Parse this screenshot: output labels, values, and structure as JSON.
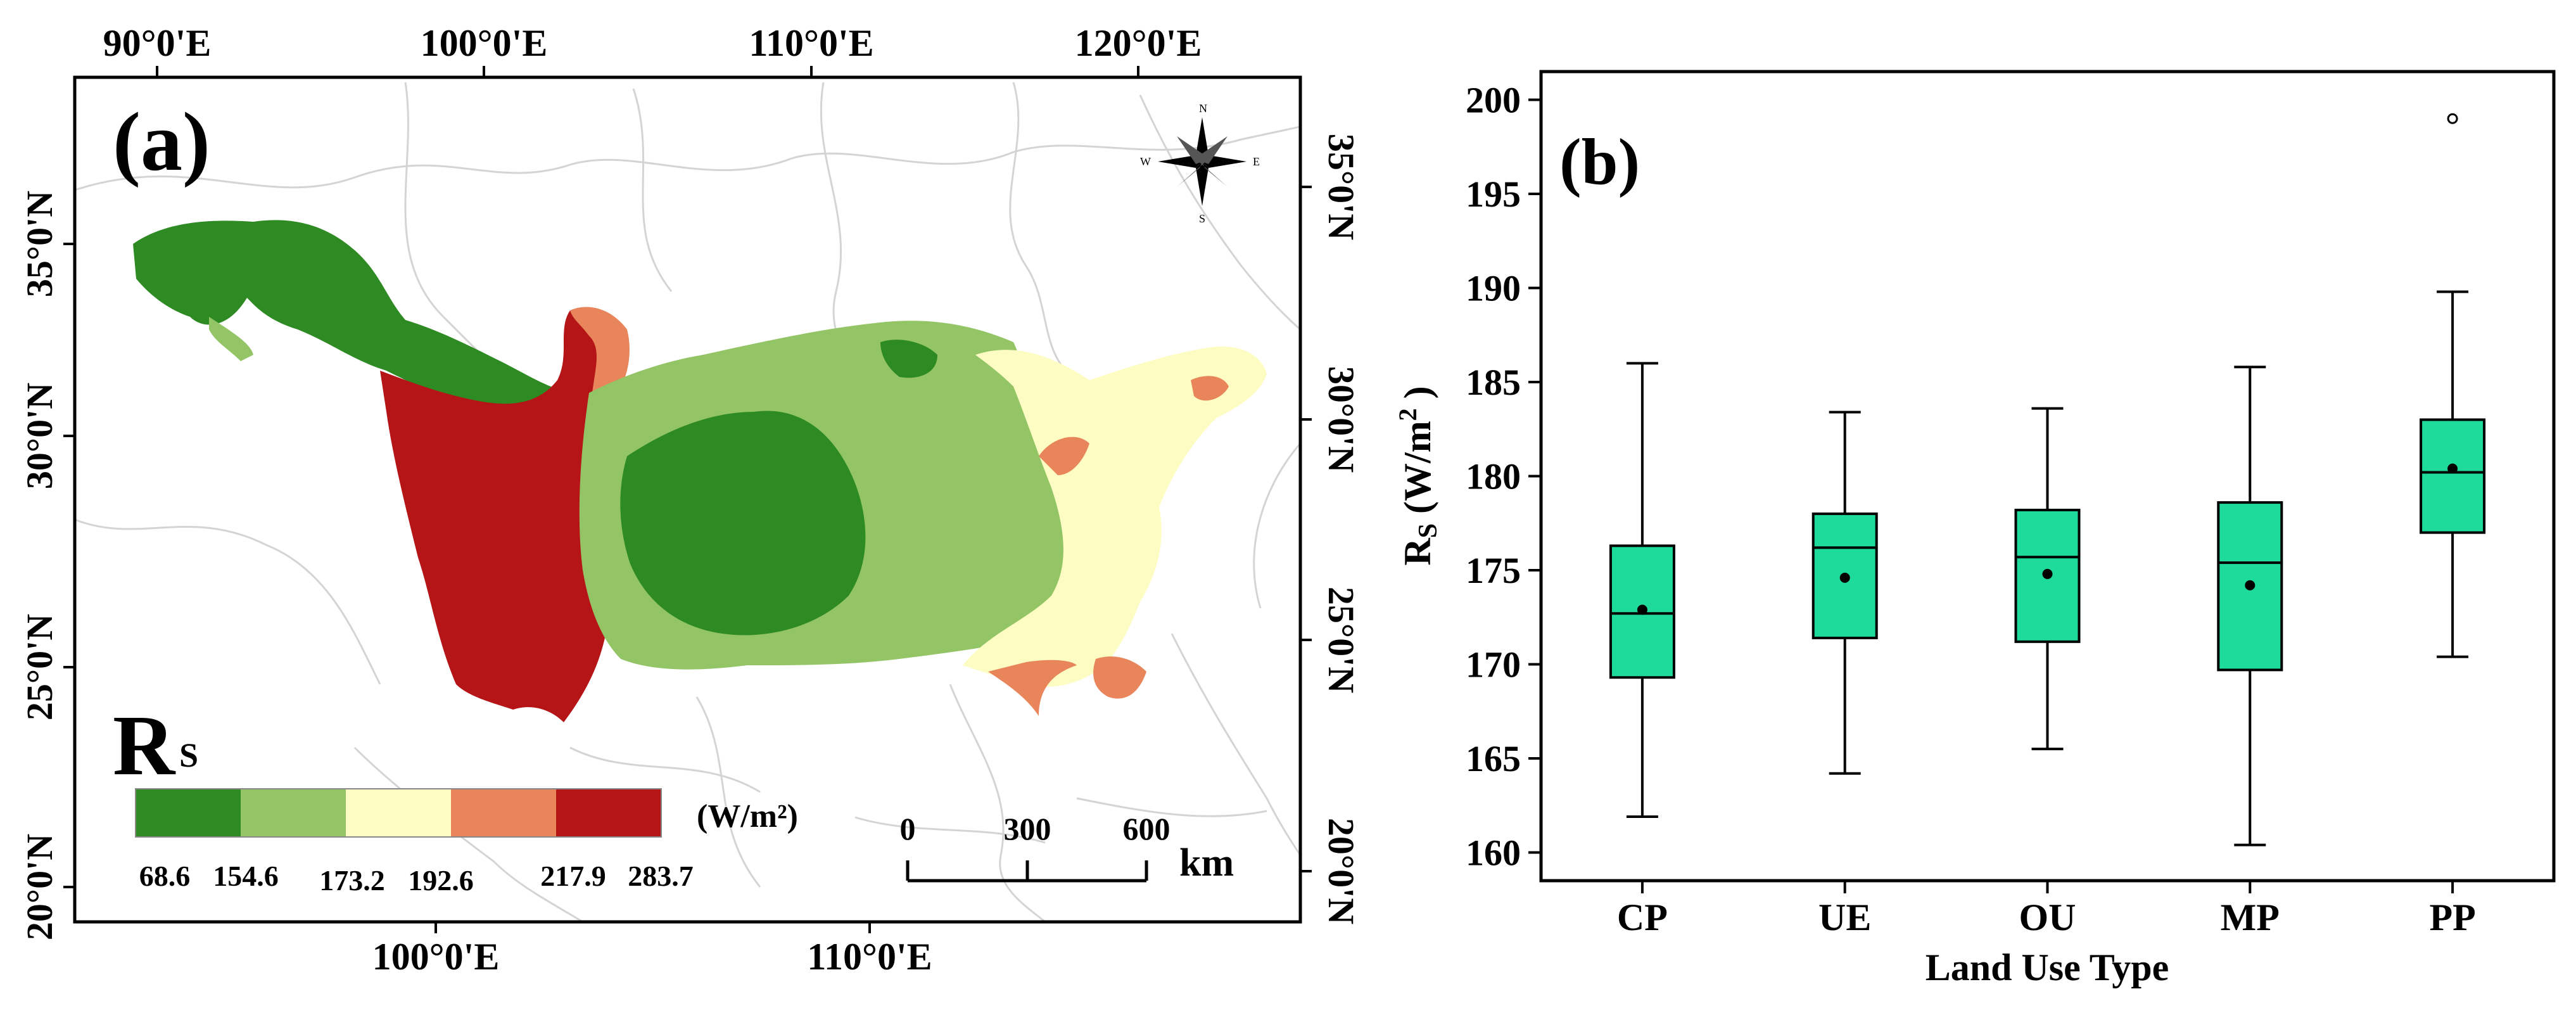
{
  "chart_data": [
    {
      "type": "map",
      "panel_label": "(a)",
      "variable": "Rs",
      "variable_main": "R",
      "variable_sub": "S",
      "unit": "(W/m²)",
      "top_lon_ticks": [
        "90°0'E",
        "100°0'E",
        "110°0'E",
        "120°0'E"
      ],
      "bottom_lon_ticks": [
        "100°0'E",
        "110°0'E"
      ],
      "left_lat_ticks": [
        "35°0'N",
        "30°0'N",
        "25°0'N",
        "20°0'N"
      ],
      "right_lat_ticks": [
        "35°0'N",
        "30°0'N",
        "25°0'N",
        "20°0'N"
      ],
      "legend": {
        "breaks": [
          "68.6",
          "154.6",
          "173.2",
          "192.6",
          "217.9",
          "283.7"
        ],
        "colors": [
          "#2e8b23",
          "#93c566",
          "#fdfcc2",
          "#e8855a",
          "#b51517"
        ]
      },
      "scale_bar": {
        "ticks": [
          "0",
          "300",
          "600"
        ],
        "unit": "km"
      },
      "compass": {
        "n": "N",
        "s": "S",
        "e": "E",
        "w": "W"
      }
    },
    {
      "type": "box",
      "panel_label": "(b)",
      "xlabel": "Land Use Type",
      "ylabel_main": "R",
      "ylabel_sub": "S",
      "ylabel_unit": " (W/m",
      "ylabel_sup": "2",
      "ylabel_close": " )",
      "ylim": [
        158.5,
        201.5
      ],
      "yticks": [
        160,
        165,
        170,
        175,
        180,
        185,
        190,
        195,
        200
      ],
      "box_color": "#1fdb9b",
      "categories": [
        "CP",
        "UE",
        "OU",
        "MP",
        "PP"
      ],
      "boxes": [
        {
          "name": "CP",
          "whisker_low": 161.9,
          "q1": 169.3,
          "median": 172.7,
          "q3": 176.3,
          "whisker_high": 186.0,
          "mean": 172.9,
          "outliers": []
        },
        {
          "name": "UE",
          "whisker_low": 164.2,
          "q1": 171.4,
          "median": 176.2,
          "q3": 178.0,
          "whisker_high": 183.4,
          "mean": 174.6,
          "outliers": []
        },
        {
          "name": "OU",
          "whisker_low": 165.5,
          "q1": 171.2,
          "median": 175.7,
          "q3": 178.2,
          "whisker_high": 183.6,
          "mean": 174.8,
          "outliers": []
        },
        {
          "name": "MP",
          "whisker_low": 160.4,
          "q1": 169.7,
          "median": 175.4,
          "q3": 178.6,
          "whisker_high": 185.8,
          "mean": 174.2,
          "outliers": []
        },
        {
          "name": "PP",
          "whisker_low": 170.4,
          "q1": 177.0,
          "median": 180.2,
          "q3": 183.0,
          "whisker_high": 189.8,
          "mean": 180.4,
          "outliers": [
            199.0
          ]
        }
      ]
    }
  ]
}
